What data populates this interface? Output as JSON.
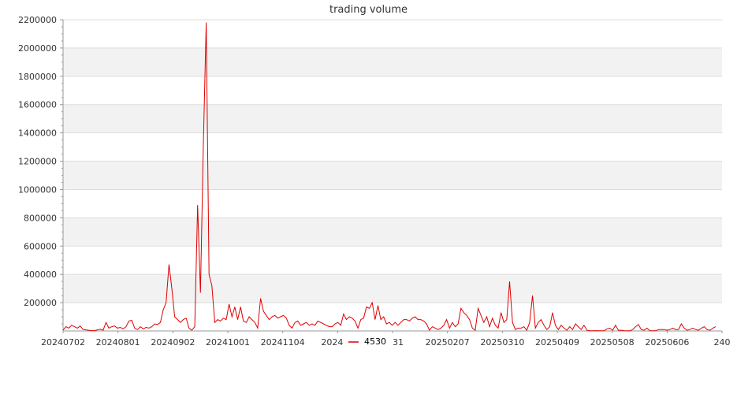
{
  "chart_data": {
    "type": "line",
    "title": "trading volume",
    "xlabel": "",
    "ylabel": "",
    "ylim": [
      0,
      2200000
    ],
    "yticks": [
      200000,
      400000,
      600000,
      800000,
      1000000,
      1200000,
      1400000,
      1600000,
      1800000,
      2000000,
      2200000
    ],
    "x_tick_labels": [
      "20240702",
      "20240801",
      "20240902",
      "20241001",
      "20241104",
      "202412",
      "1231",
      "20250207",
      "20250310",
      "20250409",
      "20250508",
      "20250606",
      "240"
    ],
    "grid": true,
    "legend_position": "bottom",
    "colors": {
      "line": "#dd0000",
      "band": "#f2f2f2",
      "grid": "#dddddd",
      "axis": "#999999"
    },
    "series": [
      {
        "name": "4530",
        "values": [
          5000,
          30000,
          20000,
          40000,
          30000,
          20000,
          35000,
          10000,
          8000,
          5000,
          3000,
          2000,
          8000,
          12000,
          5000,
          60000,
          20000,
          30000,
          35000,
          20000,
          25000,
          15000,
          30000,
          70000,
          75000,
          20000,
          10000,
          30000,
          15000,
          25000,
          20000,
          30000,
          50000,
          45000,
          60000,
          150000,
          200000,
          470000,
          300000,
          100000,
          80000,
          60000,
          80000,
          90000,
          20000,
          5000,
          30000,
          890000,
          270000,
          1300000,
          2180000,
          400000,
          320000,
          60000,
          80000,
          70000,
          90000,
          80000,
          190000,
          100000,
          170000,
          80000,
          170000,
          70000,
          60000,
          100000,
          80000,
          60000,
          20000,
          230000,
          140000,
          110000,
          80000,
          100000,
          110000,
          90000,
          100000,
          110000,
          90000,
          40000,
          20000,
          60000,
          70000,
          40000,
          50000,
          60000,
          40000,
          50000,
          40000,
          70000,
          60000,
          50000,
          40000,
          30000,
          30000,
          50000,
          60000,
          40000,
          120000,
          80000,
          100000,
          90000,
          70000,
          20000,
          80000,
          90000,
          170000,
          160000,
          200000,
          80000,
          180000,
          80000,
          100000,
          50000,
          60000,
          40000,
          60000,
          40000,
          60000,
          80000,
          80000,
          70000,
          90000,
          100000,
          80000,
          80000,
          70000,
          50000,
          5000,
          30000,
          20000,
          10000,
          20000,
          40000,
          80000,
          20000,
          60000,
          30000,
          50000,
          160000,
          130000,
          110000,
          80000,
          20000,
          5000,
          160000,
          110000,
          60000,
          100000,
          30000,
          90000,
          40000,
          20000,
          130000,
          60000,
          80000,
          350000,
          60000,
          10000,
          20000,
          20000,
          30000,
          5000,
          60000,
          250000,
          20000,
          60000,
          80000,
          40000,
          10000,
          30000,
          130000,
          40000,
          10000,
          40000,
          20000,
          5000,
          30000,
          10000,
          50000,
          30000,
          10000,
          40000,
          5000,
          1000,
          1000,
          2000,
          1000,
          1000,
          1000,
          15000,
          20000,
          5000,
          40000,
          5000,
          5000,
          1000,
          1000,
          1000,
          10000,
          30000,
          45000,
          10000,
          5000,
          20000,
          1000,
          1000,
          1000,
          10000,
          10000,
          10000,
          5000,
          10000,
          20000,
          10000,
          10000,
          50000,
          20000,
          5000,
          10000,
          20000,
          10000,
          5000,
          20000,
          30000,
          10000,
          5000,
          20000,
          30000
        ]
      }
    ]
  }
}
